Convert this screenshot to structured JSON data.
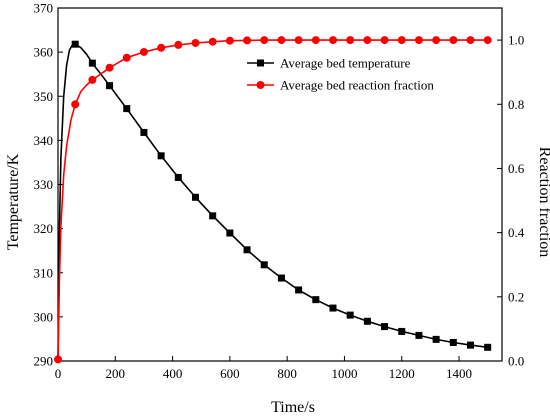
{
  "chart_data": {
    "type": "line",
    "title": "",
    "xlabel": "Time/s",
    "ylabel_left": "Temperature/K",
    "ylabel_right": "Reaction fraction",
    "xlim": [
      0,
      1550
    ],
    "ylim_left": [
      290,
      370
    ],
    "ylim_right": [
      0.0,
      1.1
    ],
    "x_ticks": [
      0,
      200,
      400,
      600,
      800,
      1000,
      1200,
      1400
    ],
    "y_left_ticks": [
      290,
      300,
      310,
      320,
      330,
      340,
      350,
      360,
      370
    ],
    "y_right_ticks": [
      "0.0",
      "0.2",
      "0.4",
      "0.6",
      "0.8",
      "1.0"
    ],
    "y_right_tick_values": [
      0,
      0.2,
      0.4,
      0.6,
      0.8,
      1.0
    ],
    "grid": false,
    "legend_position": "top-right",
    "series": [
      {
        "name": "Average bed temperature",
        "axis": "left",
        "color": "#000000",
        "marker": "square",
        "curve_x": [
          0,
          5,
          10,
          20,
          30,
          40,
          50,
          60,
          80,
          100,
          120,
          150,
          180,
          240,
          300,
          360,
          420,
          480,
          540,
          600,
          660,
          720,
          780,
          840,
          900,
          960,
          1020,
          1080,
          1140,
          1200,
          1260,
          1320,
          1380,
          1440,
          1500
        ],
        "curve_y": [
          290,
          320,
          336,
          350,
          357,
          360.5,
          361.6,
          361.8,
          361.0,
          359.5,
          357.5,
          355.0,
          352.4,
          347.2,
          341.8,
          336.5,
          331.6,
          327.1,
          322.9,
          319.0,
          315.2,
          311.8,
          308.8,
          306.1,
          303.9,
          302.0,
          300.4,
          299.0,
          297.8,
          296.7,
          295.8,
          294.9,
          294.2,
          293.6,
          293.1
        ],
        "marker_x": [
          60,
          120,
          180,
          240,
          300,
          360,
          420,
          480,
          540,
          600,
          660,
          720,
          780,
          840,
          900,
          960,
          1020,
          1080,
          1140,
          1200,
          1260,
          1320,
          1380,
          1440,
          1500
        ],
        "marker_y": [
          361.8,
          357.5,
          352.4,
          347.2,
          341.8,
          336.5,
          331.6,
          327.1,
          322.9,
          319.0,
          315.2,
          311.8,
          308.8,
          306.1,
          303.9,
          302.0,
          300.4,
          299.0,
          297.8,
          296.7,
          295.8,
          294.9,
          294.2,
          293.6,
          293.1
        ]
      },
      {
        "name": "Average bed reaction fraction",
        "axis": "right",
        "color": "#ff0000",
        "marker": "circle",
        "curve_x": [
          0,
          5,
          10,
          20,
          30,
          45,
          60,
          80,
          100,
          120,
          150,
          180,
          240,
          300,
          360,
          420,
          480,
          540,
          600,
          660,
          720,
          780,
          840,
          900,
          960,
          1020,
          1080,
          1140,
          1200,
          1260,
          1320,
          1380,
          1440,
          1500
        ],
        "curve_y": [
          0.005,
          0.25,
          0.42,
          0.58,
          0.67,
          0.75,
          0.8,
          0.84,
          0.86,
          0.876,
          0.895,
          0.914,
          0.945,
          0.963,
          0.976,
          0.985,
          0.991,
          0.995,
          0.998,
          0.999,
          1.0,
          1.0,
          1.0,
          1.0,
          1.0,
          1.0,
          1.0,
          1.0,
          1.0,
          1.0,
          1.0,
          1.0,
          1.0,
          1.0
        ],
        "marker_x": [
          0,
          60,
          120,
          180,
          240,
          300,
          360,
          420,
          480,
          540,
          600,
          660,
          720,
          780,
          840,
          900,
          960,
          1020,
          1080,
          1140,
          1200,
          1260,
          1320,
          1380,
          1440,
          1500
        ],
        "marker_y": [
          0.005,
          0.8,
          0.876,
          0.914,
          0.945,
          0.963,
          0.976,
          0.985,
          0.991,
          0.995,
          0.998,
          0.999,
          1.0,
          1.0,
          1.0,
          1.0,
          1.0,
          1.0,
          1.0,
          1.0,
          1.0,
          1.0,
          1.0,
          1.0,
          1.0,
          1.0
        ]
      }
    ]
  }
}
